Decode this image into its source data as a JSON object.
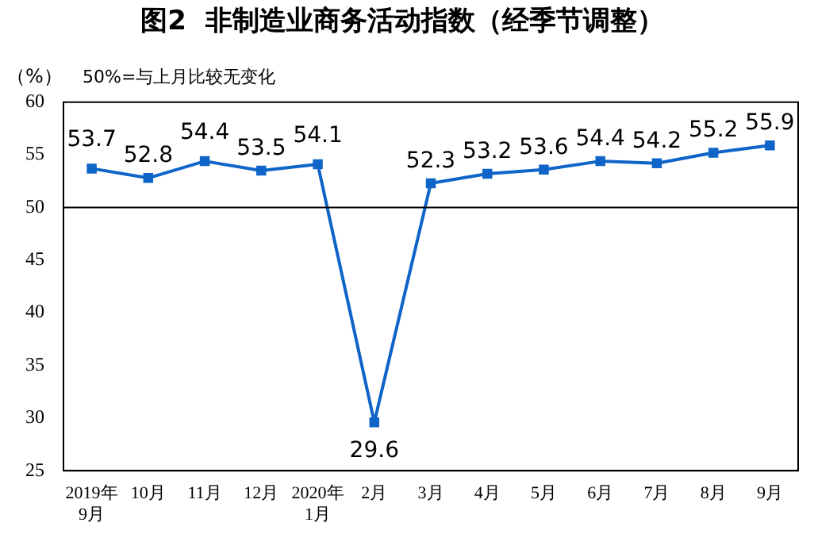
{
  "chart_data": {
    "type": "line",
    "title": "图2  非制造业商务活动指数（经季节调整）",
    "ylabel": "（%）",
    "annotations": [
      "50%=与上月比较无变化"
    ],
    "categories": [
      "2019年\n9月",
      "10月",
      "11月",
      "12月",
      "2020年\n1月",
      "2月",
      "3月",
      "4月",
      "5月",
      "6月",
      "7月",
      "8月",
      "9月"
    ],
    "series": [
      {
        "color": "#0f64c8",
        "values": [
          53.7,
          52.8,
          54.4,
          53.5,
          54.1,
          29.6,
          52.3,
          53.2,
          53.6,
          54.4,
          54.2,
          55.2,
          55.9
        ]
      }
    ],
    "ylim": [
      25,
      60
    ],
    "yticks": [
      25,
      30,
      35,
      40,
      45,
      50,
      55,
      60
    ],
    "ref_lines": [
      {
        "axis": "y",
        "value": 50,
        "color": "#000000"
      }
    ],
    "data_labels": true,
    "marker": "square",
    "grid": false,
    "legend": false
  }
}
